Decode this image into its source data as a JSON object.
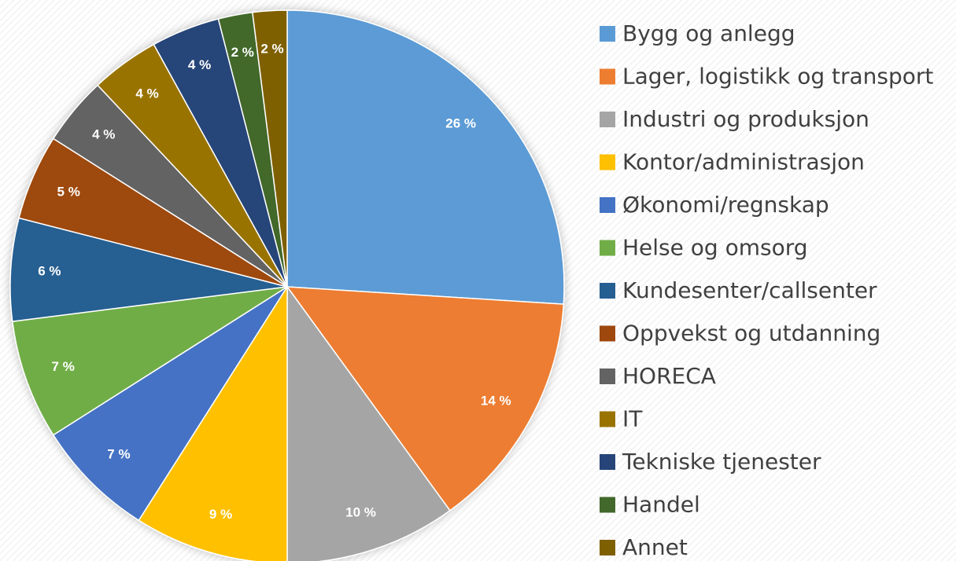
{
  "chart_data": {
    "type": "pie",
    "categories": [
      "Bygg og anlegg",
      "Lager, logistikk og transport",
      "Industri og produksjon",
      "Kontor/administrasjon",
      "Økonomi/regnskap",
      "Helse og omsorg",
      "Kundesenter/callsenter",
      "Oppvekst og utdanning",
      "HORECA",
      "IT",
      "Tekniske tjenester",
      "Handel",
      "Annet"
    ],
    "values": [
      26,
      14,
      10,
      9,
      7,
      7,
      6,
      5,
      4,
      4,
      4,
      2,
      2
    ],
    "value_labels": [
      "26 %",
      "14 %",
      "10 %",
      "9 %",
      "7 %",
      "7 %",
      "6 %",
      "5 %",
      "4 %",
      "4 %",
      "4 %",
      "2 %",
      "2 %"
    ],
    "colors": [
      "#5b9bd5",
      "#ed7d31",
      "#a5a5a5",
      "#ffc000",
      "#4472c4",
      "#70ad47",
      "#255e91",
      "#9e480e",
      "#636363",
      "#997300",
      "#264478",
      "#43682b",
      "#7f6000"
    ],
    "legend": "right"
  }
}
